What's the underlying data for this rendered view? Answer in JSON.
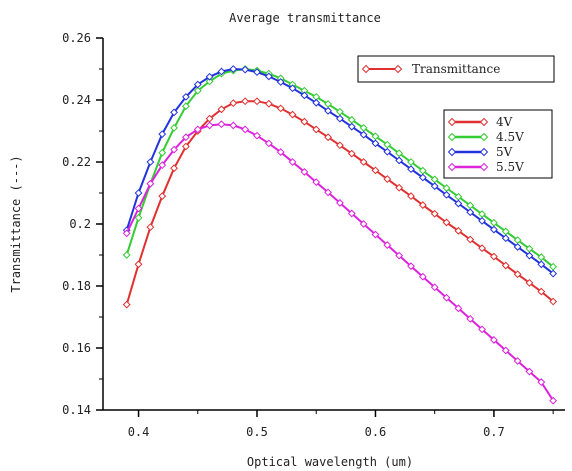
{
  "chart_data": {
    "type": "line",
    "title": "Average transmittance",
    "xlabel": "Optical wavelength (um)",
    "ylabel": "Transmittance (---)",
    "xlim": [
      0.37,
      0.76
    ],
    "ylim": [
      0.14,
      0.26
    ],
    "xticks": [
      0.4,
      0.5,
      0.6,
      0.7
    ],
    "xtick_labels": [
      "0.4",
      "0.5",
      "0.6",
      "0.7"
    ],
    "yticks": [
      0.14,
      0.16,
      0.18,
      0.2,
      0.22,
      0.24,
      0.26
    ],
    "ytick_labels": [
      "0.14",
      "0.16",
      "0.18",
      "0.2",
      "0.22",
      "0.24",
      "0.26"
    ],
    "grid": false,
    "legend_title_box": {
      "label": "Transmittance",
      "color": "#e03030",
      "position": "top-right"
    },
    "legend_position": "right",
    "x": [
      0.39,
      0.4,
      0.41,
      0.42,
      0.43,
      0.44,
      0.45,
      0.46,
      0.47,
      0.48,
      0.49,
      0.5,
      0.51,
      0.52,
      0.53,
      0.54,
      0.55,
      0.56,
      0.57,
      0.58,
      0.59,
      0.6,
      0.61,
      0.62,
      0.63,
      0.64,
      0.65,
      0.66,
      0.67,
      0.68,
      0.69,
      0.7,
      0.71,
      0.72,
      0.73,
      0.74,
      0.75
    ],
    "series": [
      {
        "name": "4V",
        "color": "#e03030",
        "values": [
          0.174,
          0.187,
          0.199,
          0.209,
          0.218,
          0.225,
          0.23,
          0.234,
          0.237,
          0.239,
          0.2396,
          0.2396,
          0.2388,
          0.2373,
          0.2353,
          0.233,
          0.2305,
          0.228,
          0.2254,
          0.2227,
          0.22,
          0.2173,
          0.2145,
          0.2117,
          0.209,
          0.2061,
          0.2033,
          0.2005,
          0.1978,
          0.195,
          0.1922,
          0.1895,
          0.1866,
          0.1838,
          0.181,
          0.1782,
          0.175
        ]
      },
      {
        "name": "4.5V",
        "color": "#33cc33",
        "values": [
          0.19,
          0.202,
          0.213,
          0.223,
          0.231,
          0.238,
          0.243,
          0.246,
          0.2485,
          0.2495,
          0.25,
          0.2495,
          0.2485,
          0.247,
          0.245,
          0.243,
          0.241,
          0.2387,
          0.2362,
          0.2336,
          0.231,
          0.2283,
          0.2256,
          0.2228,
          0.22,
          0.2172,
          0.2144,
          0.2116,
          0.2088,
          0.206,
          0.2032,
          0.2004,
          0.1976,
          0.1948,
          0.192,
          0.1893,
          0.1862
        ]
      },
      {
        "name": "5V",
        "color": "#2233dd",
        "values": [
          0.198,
          0.21,
          0.22,
          0.229,
          0.236,
          0.241,
          0.245,
          0.2475,
          0.2492,
          0.25,
          0.2498,
          0.249,
          0.2476,
          0.2458,
          0.2438,
          0.2415,
          0.2391,
          0.2365,
          0.234,
          0.2314,
          0.2288,
          0.226,
          0.2233,
          0.2205,
          0.2177,
          0.215,
          0.2122,
          0.2094,
          0.2066,
          0.2038,
          0.201,
          0.1982,
          0.1954,
          0.1926,
          0.1898,
          0.187,
          0.184
        ]
      },
      {
        "name": "5.5V",
        "color": "#dd22dd",
        "values": [
          0.197,
          0.205,
          0.213,
          0.219,
          0.224,
          0.228,
          0.2305,
          0.2318,
          0.2322,
          0.2318,
          0.2305,
          0.2285,
          0.226,
          0.2232,
          0.22,
          0.2168,
          0.2135,
          0.2102,
          0.2068,
          0.2034,
          0.2,
          0.1966,
          0.1932,
          0.1898,
          0.1864,
          0.183,
          0.1796,
          0.1762,
          0.1728,
          0.1694,
          0.166,
          0.1626,
          0.1592,
          0.1558,
          0.1524,
          0.149,
          0.143
        ]
      }
    ]
  }
}
